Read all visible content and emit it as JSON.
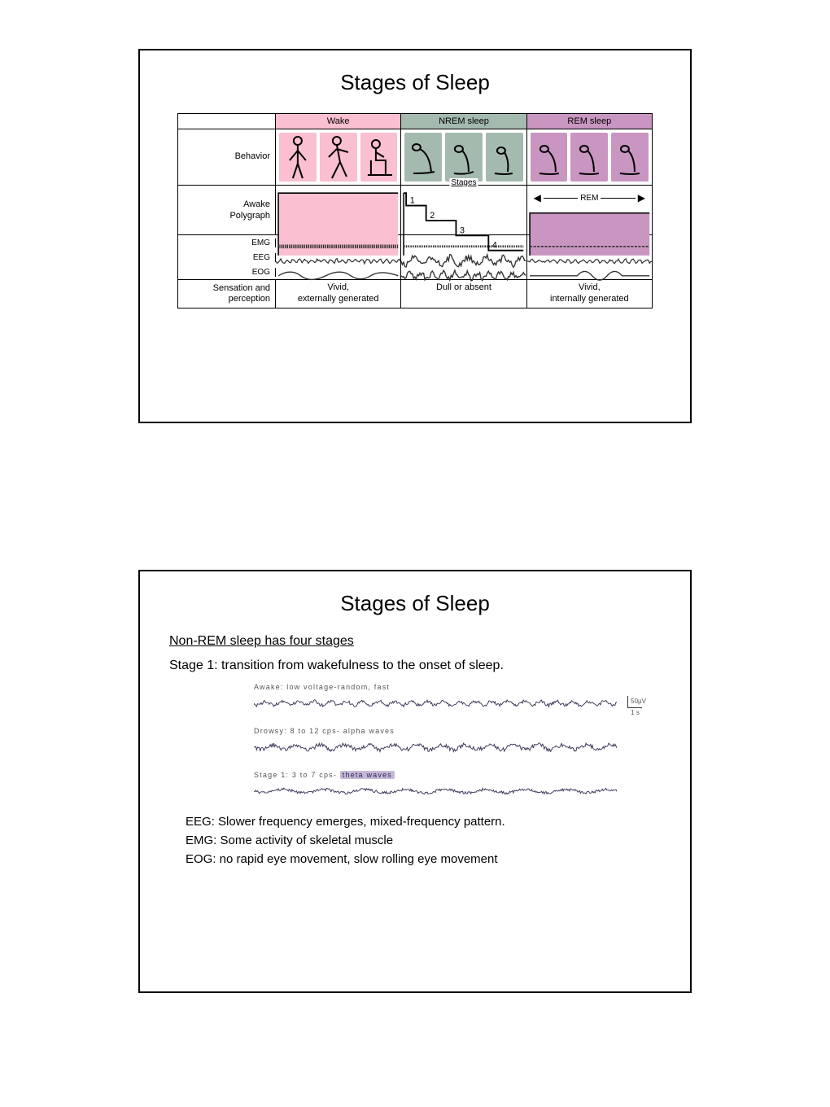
{
  "slide1": {
    "title": "Stages of Sleep",
    "columns": [
      "Wake",
      "NREM sleep",
      "REM sleep"
    ],
    "column_bg": [
      "#fabfd0",
      "#a5baaf",
      "#c896c0"
    ],
    "rows": {
      "behavior_label": "Behavior",
      "polygraph_labels": [
        "Awake",
        "Polygraph"
      ],
      "stages_label": "Stages",
      "stage_nums": [
        "1",
        "2",
        "3",
        "4"
      ],
      "rem_label": "REM",
      "signal_labels": [
        "EMG",
        "EEG",
        "EOG"
      ],
      "sensation_label": "Sensation and perception",
      "sensation_values": [
        "Vivid,\nexternally generated",
        "Dull or absent",
        "Vivid,\ninternally generated"
      ]
    },
    "behavior_panel_bg": {
      "wake": "#fabfd0",
      "nrem": "#a5baaf",
      "rem": "#c896c0"
    },
    "style": {
      "title_fontsize": 26,
      "label_fontsize": 11,
      "border_color": "#000000",
      "stroke_color": "#2a2a2a"
    }
  },
  "slide2": {
    "title": "Stages of Sleep",
    "subhead": "Non-REM sleep has four stages",
    "stage1_intro": "Stage 1: transition from wakefulness to the onset of sleep.",
    "eeg": [
      {
        "label": "Awake: low voltage-random, fast",
        "amp": 4,
        "freq": 45,
        "scale": "50µV",
        "scale_time": "1 s"
      },
      {
        "label": "Drowsy: 8 to 12 cps- alpha waves",
        "amp": 5,
        "freq": 30
      },
      {
        "label": "Stage 1: 3 to 7 cps-",
        "pill": "theta waves",
        "amp": 3.5,
        "freq": 18
      }
    ],
    "bullets": [
      "EEG: Slower frequency emerges, mixed-frequency pattern.",
      "EMG: Some activity of skeletal muscle",
      "EOG: no rapid eye movement, slow rolling eye movement"
    ],
    "style": {
      "title_fontsize": 26,
      "text_fontsize": 16,
      "eeg_label_fontsize": 9,
      "eeg_stroke": "#3a3a5a"
    }
  },
  "page_background": "#ffffff"
}
